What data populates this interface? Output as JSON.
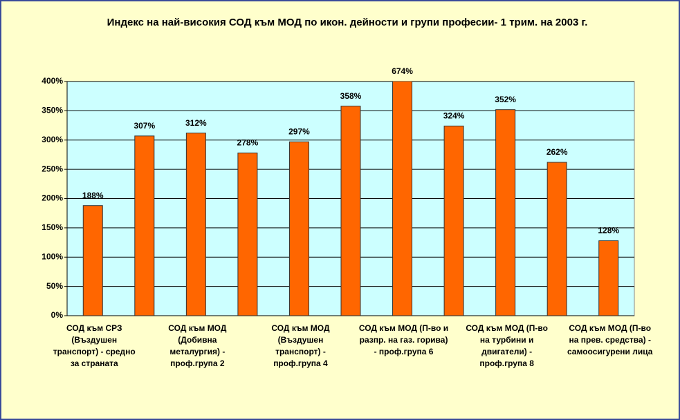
{
  "chart_data": {
    "type": "bar",
    "title": "Индекс на най-високия СОД към МОД по икон. дейности и групи професии- 1 трим. на 2003 г.",
    "categories": [
      "СОД към СРЗ (Въздушен транспорт) - средно за страната",
      null,
      "СОД към МОД (Добивна металургия) - проф.група 2",
      null,
      "СОД към МОД (Въздушен транспорт) - проф.група 4",
      null,
      "СОД към МОД (П-во и разпр. на газ. горива) - проф.група 6",
      null,
      "СОД към МОД (П-во на турбини и двигатели) - проф.група 8",
      null,
      "СОД към МОД (П-во на прев. средства) - самоосигурени лица"
    ],
    "values": [
      188,
      307,
      312,
      278,
      297,
      358,
      674,
      324,
      352,
      262,
      128
    ],
    "value_labels": [
      "188%",
      "307%",
      "312%",
      "278%",
      "297%",
      "358%",
      "674%",
      "324%",
      "352%",
      "262%",
      "128%"
    ],
    "color": "#ff6600",
    "ylim": [
      0,
      400
    ],
    "yticks": [
      {
        "value": 0,
        "label": "0%"
      },
      {
        "value": 50,
        "label": "50%"
      },
      {
        "value": 100,
        "label": "100%"
      },
      {
        "value": 150,
        "label": "150%"
      },
      {
        "value": 200,
        "label": "200%"
      },
      {
        "value": 250,
        "label": "250%"
      },
      {
        "value": 300,
        "label": "300%"
      },
      {
        "value": 350,
        "label": "350%"
      },
      {
        "value": 400,
        "label": "400%"
      }
    ],
    "grid": true
  }
}
